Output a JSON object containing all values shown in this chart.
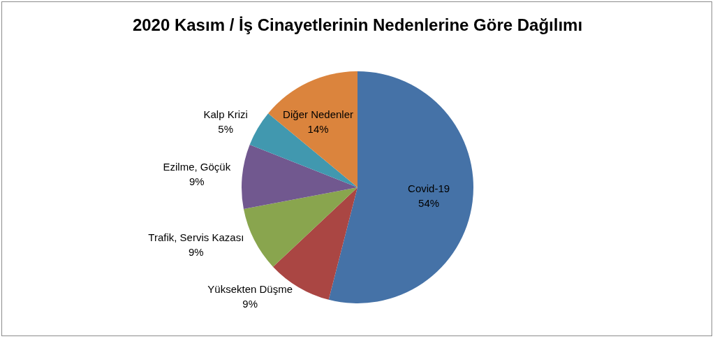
{
  "chart_data": {
    "type": "pie",
    "title": "2020 Kasım / İş Cinayetlerinin Nedenlerine Göre Dağılımı",
    "categories": [
      "Covid-19",
      "Yüksekten Düşme",
      "Trafik, Servis Kazası",
      "Ezilme, Göçük",
      "Kalp Krizi",
      "Diğer Nedenler"
    ],
    "values": [
      54,
      9,
      9,
      9,
      5,
      14
    ],
    "colors": [
      "#4572a7",
      "#aa4643",
      "#89a54e",
      "#71588f",
      "#4198af",
      "#db843d"
    ],
    "value_labels": [
      "54%",
      "9%",
      "9%",
      "9%",
      "5%",
      "14%"
    ]
  }
}
